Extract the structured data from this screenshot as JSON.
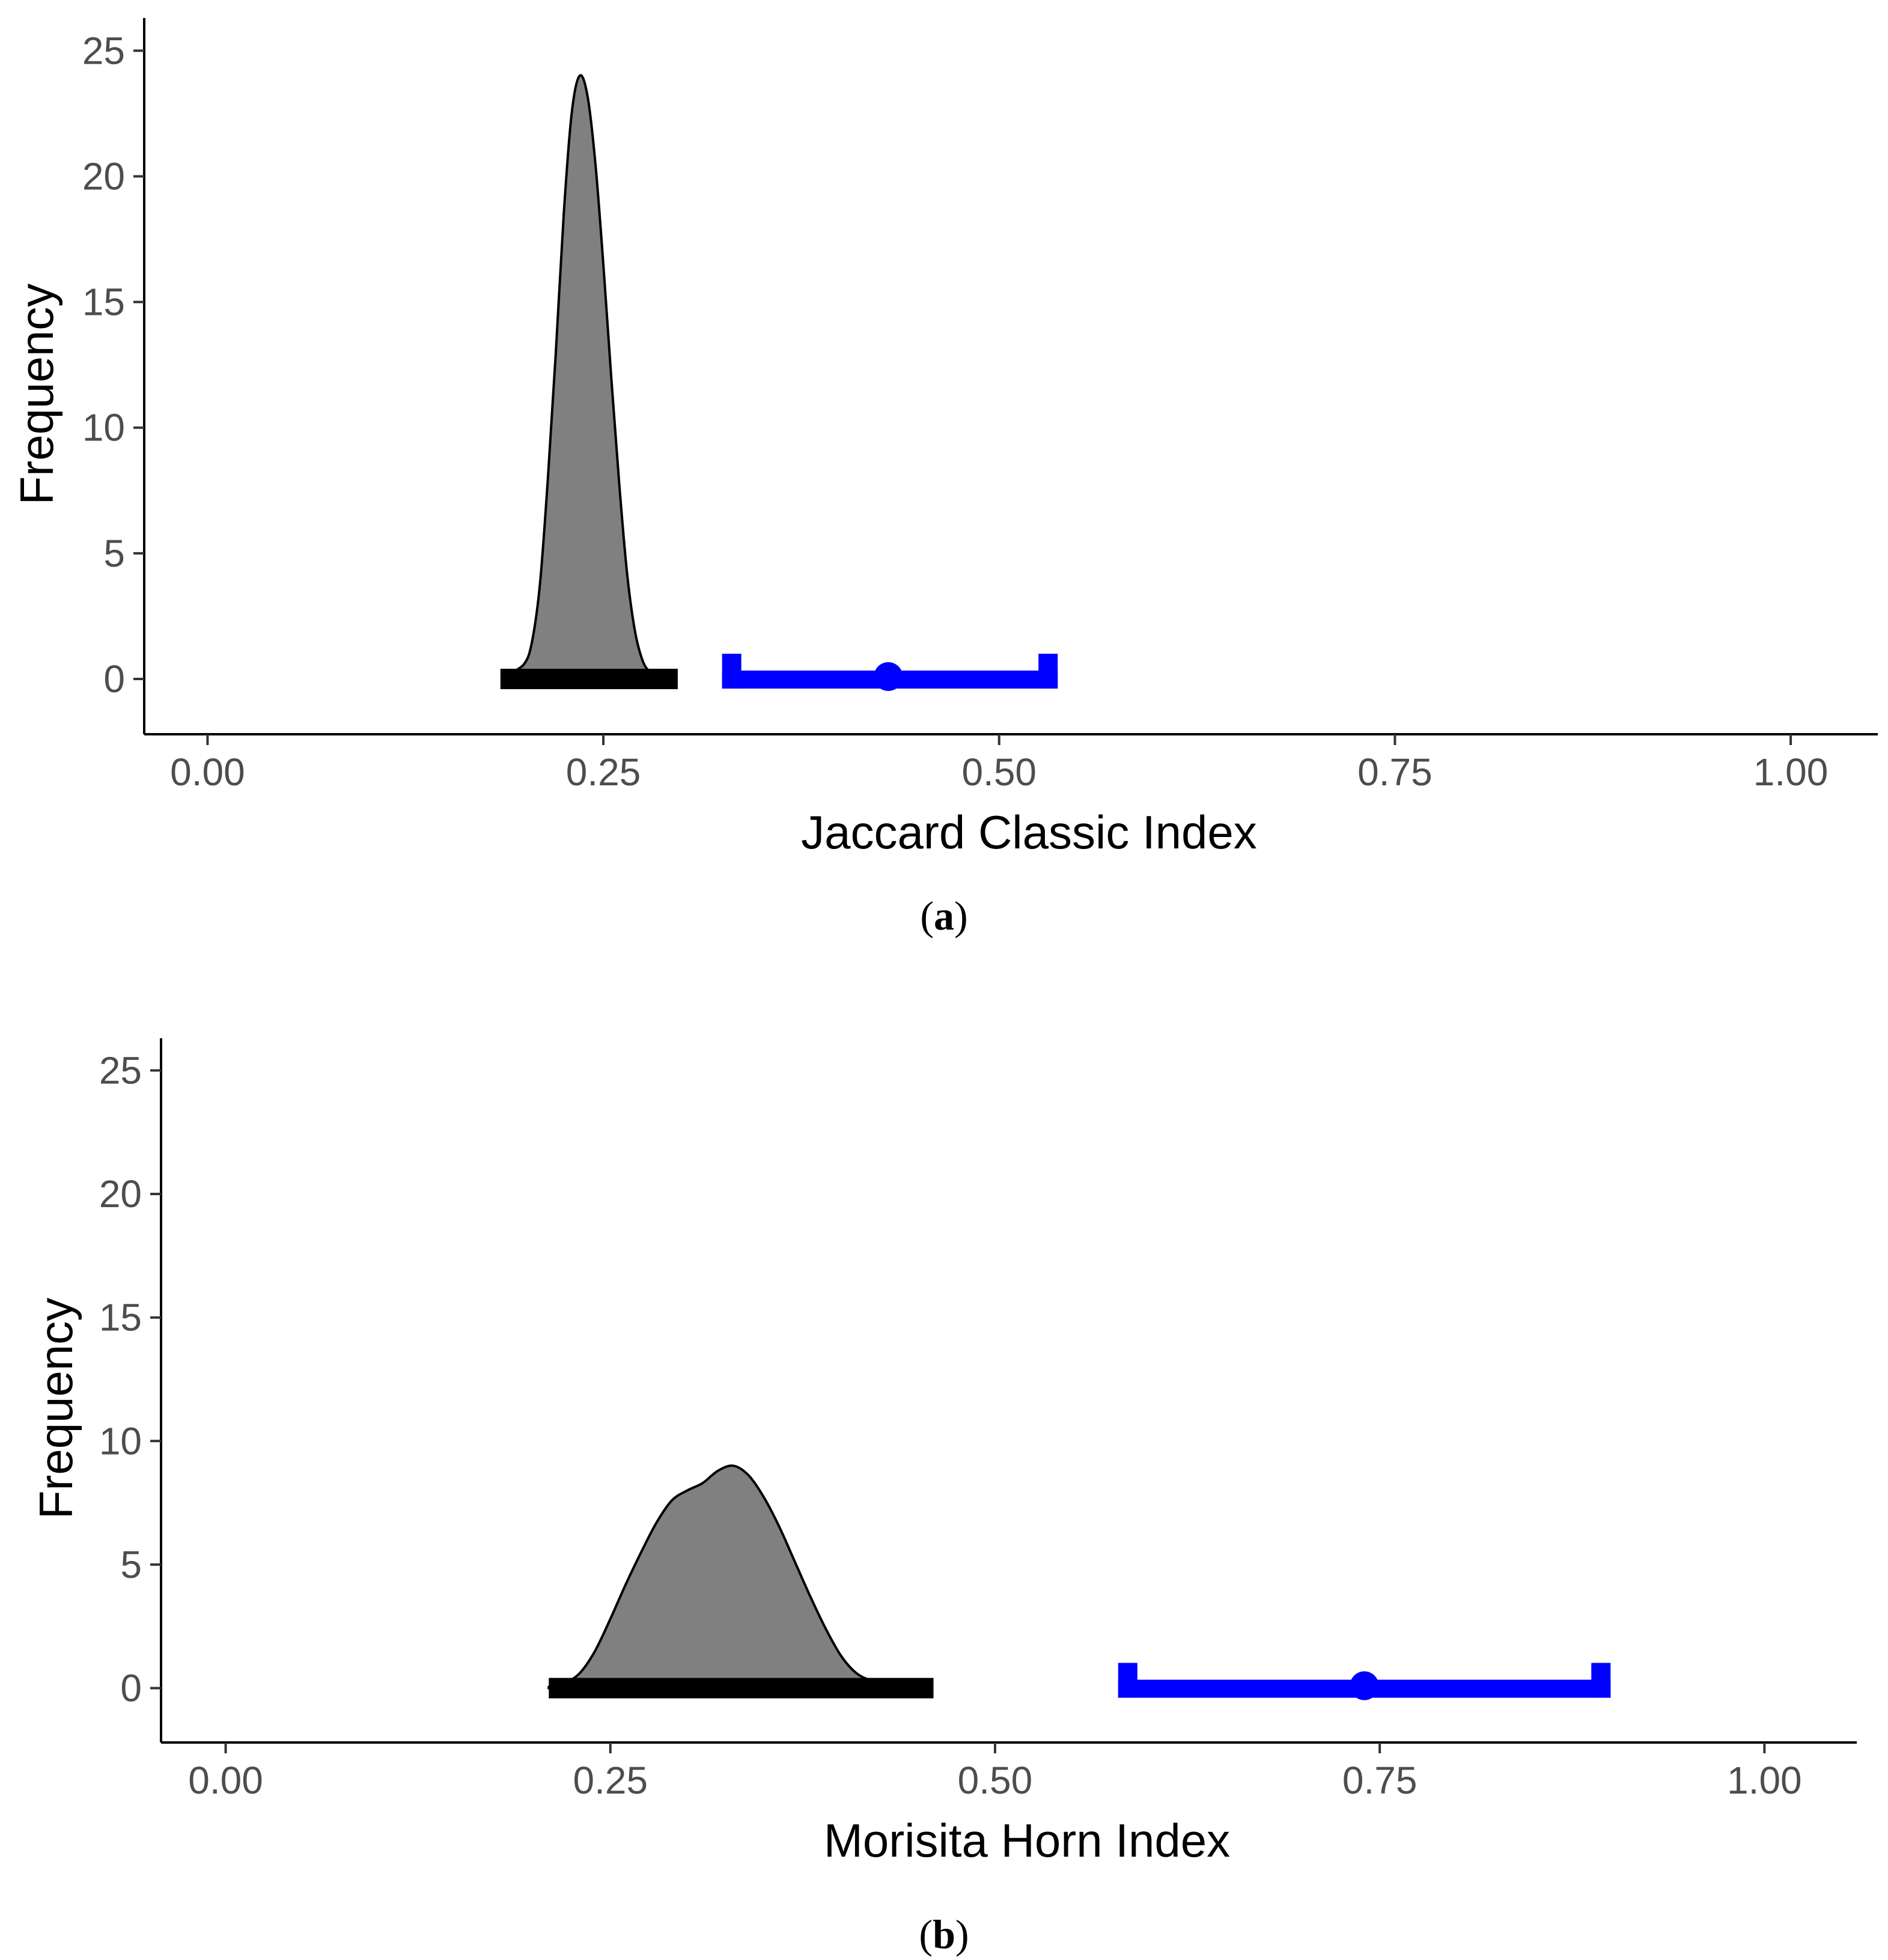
{
  "colors": {
    "density_fill": "#808080",
    "density_line": "#000000",
    "null_bar": "#000000",
    "observed": "#0000ff",
    "tick_text": "#4d4d4d"
  },
  "chart_data": [
    {
      "type": "area",
      "xlabel": "Jaccard Classic Index",
      "ylabel": "Frequency",
      "caption": "a",
      "xlim": [
        0.0,
        1.0
      ],
      "ylim": [
        -2.2,
        26.3
      ],
      "x_ticks": [
        "0.00",
        "0.25",
        "0.50",
        "0.75",
        "1.00"
      ],
      "y_ticks": [
        "0",
        "5",
        "10",
        "15",
        "20",
        "25"
      ],
      "grid": false,
      "density": {
        "x": [
          0.19,
          0.2,
          0.205,
          0.21,
          0.215,
          0.22,
          0.225,
          0.23,
          0.235,
          0.24,
          0.245,
          0.25,
          0.255,
          0.26,
          0.265,
          0.27,
          0.275,
          0.28,
          0.285,
          0.29
        ],
        "y": [
          0.2,
          0.6,
          1.5,
          3.8,
          8.0,
          13.0,
          18.5,
          22.5,
          24.0,
          23.2,
          20.5,
          16.5,
          12.0,
          7.8,
          4.2,
          1.9,
          0.7,
          0.25,
          0.08,
          0.0
        ]
      },
      "null_interval": [
        0.185,
        0.297
      ],
      "observed": {
        "estimate": 0.43,
        "ci": [
          0.325,
          0.537
        ]
      }
    },
    {
      "type": "area",
      "xlabel": "Morisita Horn Index",
      "ylabel": "Frequency",
      "caption": "b",
      "xlim": [
        0.0,
        1.0
      ],
      "ylim": [
        -2.2,
        26.3
      ],
      "x_ticks": [
        "0.00",
        "0.25",
        "0.50",
        "0.75",
        "1.00"
      ],
      "y_ticks": [
        "0",
        "5",
        "10",
        "15",
        "20",
        "25"
      ],
      "grid": false,
      "density": {
        "x": [
          0.21,
          0.22,
          0.23,
          0.24,
          0.25,
          0.26,
          0.27,
          0.28,
          0.29,
          0.3,
          0.31,
          0.32,
          0.33,
          0.34,
          0.35,
          0.36,
          0.37,
          0.38,
          0.39,
          0.4,
          0.41,
          0.42,
          0.43,
          0.44,
          0.45,
          0.46
        ],
        "y": [
          0.05,
          0.2,
          0.6,
          1.5,
          2.8,
          4.2,
          5.5,
          6.7,
          7.6,
          8.0,
          8.3,
          8.8,
          9.0,
          8.6,
          7.7,
          6.5,
          5.1,
          3.7,
          2.4,
          1.3,
          0.6,
          0.3,
          0.15,
          0.07,
          0.02,
          0.0
        ]
      },
      "null_interval": [
        0.21,
        0.46
      ],
      "observed": {
        "estimate": 0.74,
        "ci": [
          0.58,
          0.9
        ]
      }
    }
  ]
}
